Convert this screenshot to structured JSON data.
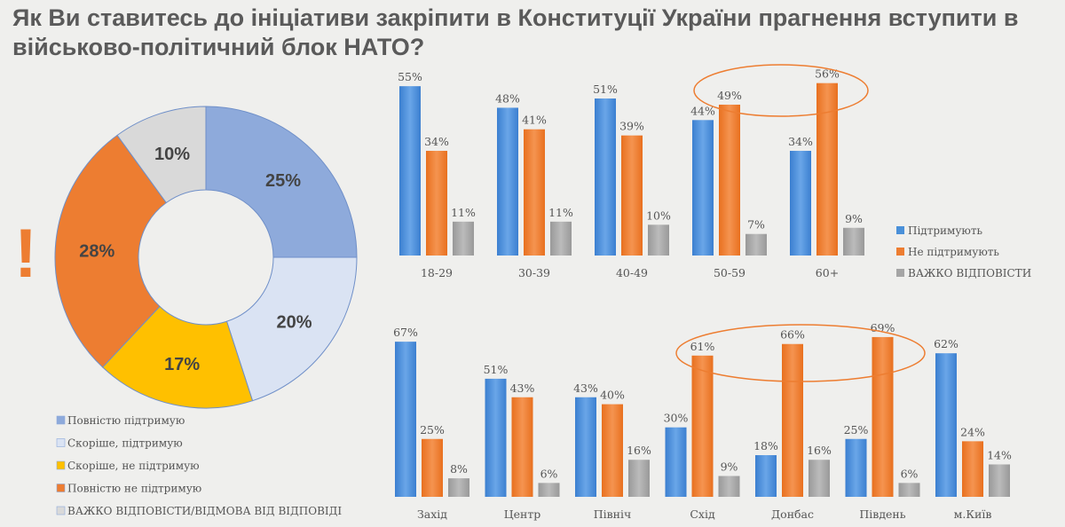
{
  "title": "Як Ви ставитесь до ініціативи   закріпити в Конституції  України прагнення вступити в військово-політичний блок НАТО?",
  "exclamation": "!",
  "chart_data": [
    {
      "type": "pie",
      "donut": true,
      "labels": [
        "Повністю підтримую",
        "Скоріше, підтримую",
        "Скоріше, не підтримую",
        "Повністю не підтримую",
        "ВАЖКО ВІДПОВІСТИ/ВІДМОВА ВІД ВІДПОВІДІ"
      ],
      "values": [
        25,
        20,
        17,
        28,
        10
      ],
      "value_labels": [
        "25%",
        "20%",
        "17%",
        "28%",
        "10%"
      ],
      "colors": [
        "#8eaadb",
        "#dae3f3",
        "#ffc000",
        "#ed7d31",
        "#d9d9d9"
      ],
      "legend": "bottom"
    },
    {
      "type": "bar",
      "categories": [
        "18-29",
        "30-39",
        "40-49",
        "50-59",
        "60+"
      ],
      "series": [
        {
          "name": "Підтримують",
          "values": [
            55,
            48,
            51,
            44,
            34
          ],
          "color": "#4a90d9"
        },
        {
          "name": "Не підтримують",
          "values": [
            34,
            41,
            39,
            49,
            56
          ],
          "color": "#ed7d31"
        },
        {
          "name": "ВАЖКО ВІДПОВІСТИ",
          "values": [
            11,
            11,
            10,
            7,
            9
          ],
          "color": "#a5a5a5"
        }
      ],
      "legend": "right",
      "highlight": [
        "50-59",
        "60+"
      ]
    },
    {
      "type": "bar",
      "categories": [
        "Захід",
        "Центр",
        "Північ",
        "Схід",
        "Донбас",
        "Південь",
        "м.Київ"
      ],
      "series": [
        {
          "values": [
            67,
            51,
            43,
            30,
            18,
            25,
            62
          ],
          "color": "#4a90d9"
        },
        {
          "values": [
            25,
            43,
            40,
            61,
            66,
            69,
            24
          ],
          "color": "#ed7d31"
        },
        {
          "values": [
            8,
            6,
            16,
            9,
            16,
            6,
            14
          ],
          "color": "#a5a5a5"
        }
      ],
      "highlight": [
        "Схід",
        "Донбас",
        "Південь"
      ]
    }
  ]
}
